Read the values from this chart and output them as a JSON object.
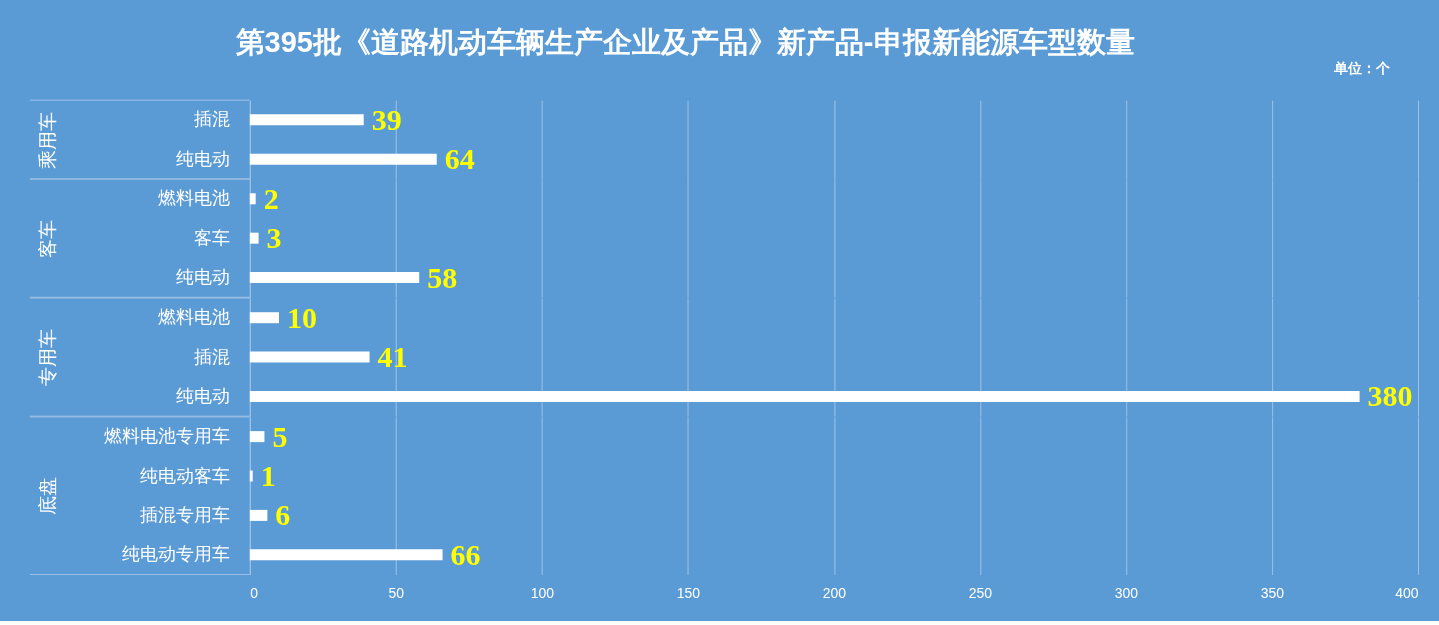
{
  "chart_data": [
    {
      "type": "bar",
      "orientation": "horizontal",
      "title": "第395批《道路机动车辆生产企业及产品》新产品-申报新能源车型数量",
      "annotations": [
        "单位：个"
      ],
      "ylabel": "乘用车",
      "categories": [
        "插混",
        "纯电动"
      ],
      "values": [
        39,
        64
      ],
      "color": "#ffffff",
      "xlim": [
        0,
        400
      ],
      "xticks": [
        0,
        50,
        100,
        150,
        200,
        250,
        300,
        350,
        400
      ],
      "grid": "x",
      "data_labels": true,
      "tick_labels": "y"
    },
    {
      "type": "bar",
      "orientation": "horizontal",
      "ylabel": "客车",
      "categories": [
        "燃料电池",
        "客车",
        "纯电动"
      ],
      "values": [
        2,
        3,
        58
      ],
      "color": "#ffffff",
      "xlim": [
        0,
        400
      ],
      "xticks": [
        0,
        50,
        100,
        150,
        200,
        250,
        300,
        350,
        400
      ],
      "grid": "x",
      "data_labels": true,
      "tick_labels": "y"
    },
    {
      "type": "bar",
      "orientation": "horizontal",
      "ylabel": "专用车",
      "categories": [
        "燃料电池",
        "插混",
        "纯电动"
      ],
      "values": [
        10,
        41,
        380
      ],
      "color": "#ffffff",
      "xlim": [
        0,
        400
      ],
      "xticks": [
        0,
        50,
        100,
        150,
        200,
        250,
        300,
        350,
        400
      ],
      "grid": "x",
      "data_labels": true,
      "tick_labels": "y"
    },
    {
      "type": "bar",
      "orientation": "horizontal",
      "ylabel": "底盘",
      "categories": [
        "燃料电池专用车",
        "纯电动客车",
        "插混专用车",
        "纯电动专用车"
      ],
      "values": [
        5,
        1,
        6,
        66
      ],
      "color": "#ffffff",
      "xlim": [
        0,
        400
      ],
      "xticks": [
        0,
        50,
        100,
        150,
        200,
        250,
        300,
        350,
        400
      ],
      "grid": "x",
      "data_labels": true
    }
  ]
}
